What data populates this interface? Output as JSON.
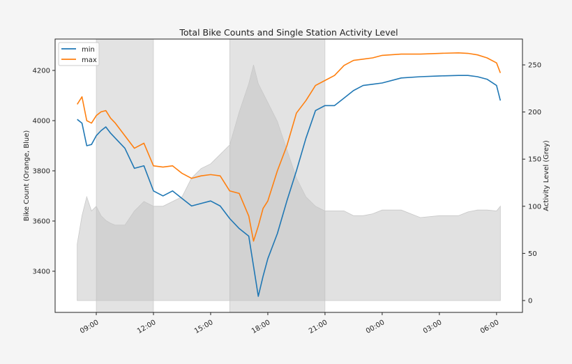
{
  "chart_data": {
    "type": "line",
    "title": "Total Bike Counts and Single Station Activity Level",
    "ylabel": "Bike Count (Orange, Blue)",
    "y2label": "Activity Level (Grey)",
    "x_unit": "hours since midnight of first day",
    "xlim": [
      6.84,
      31.36
    ],
    "ylim": [
      3236,
      4325
    ],
    "y2lim": [
      -12.6,
      277.4
    ],
    "x_ticks": [
      {
        "value": 9,
        "label": "09:00"
      },
      {
        "value": 12,
        "label": "12:00"
      },
      {
        "value": 15,
        "label": "15:00"
      },
      {
        "value": 18,
        "label": "18:00"
      },
      {
        "value": 21,
        "label": "21:00"
      },
      {
        "value": 24,
        "label": "00:00"
      },
      {
        "value": 27,
        "label": "03:00"
      },
      {
        "value": 30,
        "label": "06:00"
      }
    ],
    "y_ticks": [
      3400,
      3600,
      3800,
      4000,
      4200
    ],
    "y2_ticks": [
      0,
      50,
      100,
      150,
      200,
      250
    ],
    "shaded_spans": [
      [
        9,
        12
      ],
      [
        16,
        21
      ]
    ],
    "legend": {
      "placement": "top-left",
      "entries": [
        "min",
        "max"
      ]
    },
    "colors": {
      "min": "#1f77b4",
      "max": "#ff7f0e",
      "activity": "#bdbdbd",
      "span": "#808080"
    },
    "x": [
      8.0,
      8.25,
      8.5,
      8.75,
      9.0,
      9.25,
      9.5,
      9.75,
      10.0,
      10.5,
      11.0,
      11.5,
      12.0,
      12.5,
      13.0,
      13.5,
      14.0,
      14.5,
      15.0,
      15.5,
      16.0,
      16.5,
      17.0,
      17.25,
      17.5,
      17.75,
      18.0,
      18.5,
      19.0,
      19.5,
      20.0,
      20.5,
      21.0,
      21.5,
      22.0,
      22.5,
      23.0,
      23.5,
      24.0,
      25.0,
      26.0,
      27.0,
      28.0,
      28.5,
      29.0,
      29.5,
      30.0,
      30.2
    ],
    "series": [
      {
        "name": "min",
        "axis": "left",
        "values": [
          4005,
          3990,
          3900,
          3905,
          3940,
          3960,
          3975,
          3950,
          3930,
          3890,
          3810,
          3820,
          3720,
          3700,
          3720,
          3690,
          3660,
          3670,
          3680,
          3660,
          3610,
          3570,
          3540,
          3420,
          3300,
          3380,
          3450,
          3550,
          3680,
          3800,
          3930,
          4040,
          4060,
          4060,
          4090,
          4120,
          4140,
          4145,
          4150,
          4170,
          4175,
          4178,
          4180,
          4180,
          4175,
          4165,
          4140,
          4080
        ]
      },
      {
        "name": "max",
        "axis": "left",
        "values": [
          4065,
          4095,
          4000,
          3990,
          4020,
          4035,
          4040,
          4010,
          3990,
          3940,
          3890,
          3910,
          3820,
          3815,
          3820,
          3790,
          3770,
          3780,
          3785,
          3780,
          3720,
          3710,
          3620,
          3520,
          3580,
          3650,
          3680,
          3800,
          3900,
          4030,
          4080,
          4140,
          4160,
          4180,
          4220,
          4240,
          4245,
          4250,
          4260,
          4265,
          4265,
          4268,
          4270,
          4268,
          4262,
          4250,
          4230,
          4190
        ]
      },
      {
        "name": "activity",
        "axis": "right",
        "values": [
          60,
          90,
          110,
          95,
          100,
          90,
          85,
          82,
          80,
          80,
          95,
          105,
          100,
          100,
          105,
          110,
          130,
          140,
          145,
          155,
          165,
          200,
          230,
          250,
          230,
          220,
          210,
          190,
          160,
          130,
          110,
          100,
          95,
          95,
          95,
          90,
          90,
          92,
          96,
          96,
          88,
          90,
          90,
          94,
          96,
          96,
          95,
          100
        ]
      }
    ]
  }
}
